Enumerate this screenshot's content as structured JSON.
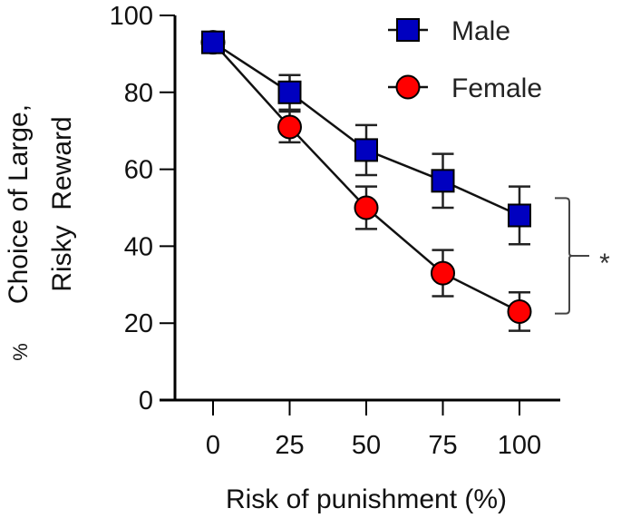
{
  "chart_data": {
    "type": "line",
    "title": "",
    "xlabel": "Risk of punishment (%)",
    "ylabel_lines": [
      "% Choice of Large,",
      "Risky Reward"
    ],
    "ylabel_percent": "%",
    "ylabel_line1": "Choice of Large,",
    "ylabel_line2": "Risky  Reward",
    "x": [
      0,
      25,
      50,
      75,
      100
    ],
    "x_tick_labels": [
      "0",
      "25",
      "50",
      "75",
      "100"
    ],
    "y_ticks": [
      0,
      20,
      40,
      60,
      80,
      100
    ],
    "y_tick_labels": [
      "0",
      "20",
      "40",
      "60",
      "80",
      "100"
    ],
    "ylim": [
      0,
      100
    ],
    "grid": false,
    "legend_position": "top-right",
    "series": [
      {
        "name": "Male",
        "marker": "square",
        "color": "#0000c0",
        "values": [
          93,
          80,
          65,
          57,
          48
        ],
        "error": [
          1.5,
          4.5,
          6.5,
          7,
          7.5
        ]
      },
      {
        "name": "Female",
        "marker": "circle",
        "color": "#ff0000",
        "values": [
          93,
          71,
          50,
          33,
          23
        ],
        "error": [
          1.5,
          4,
          5.5,
          6,
          5
        ]
      }
    ],
    "annotations": [
      {
        "type": "significance-bracket",
        "text": "*",
        "spans": "Male vs Female at 75–100%"
      }
    ]
  }
}
